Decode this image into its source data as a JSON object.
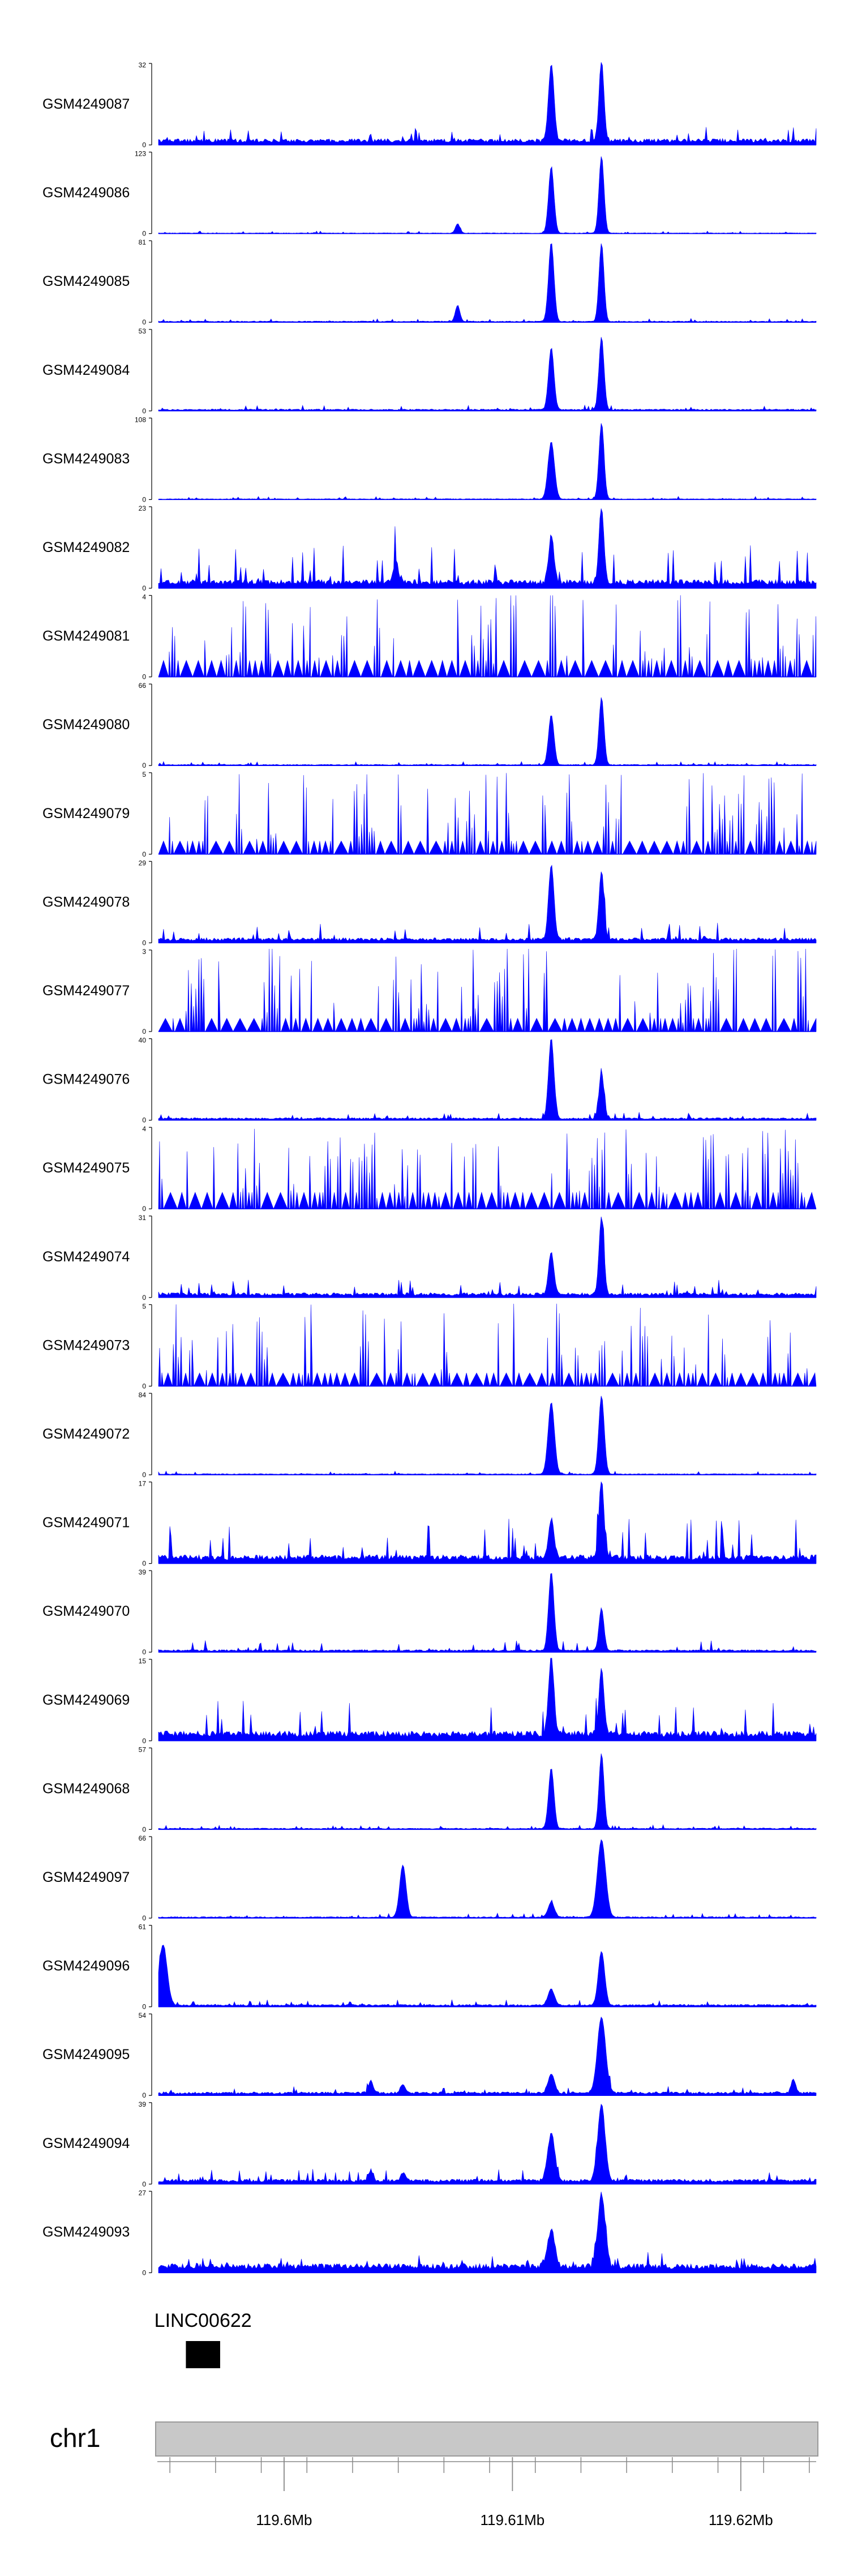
{
  "chart_data": {
    "type": "area",
    "title": "",
    "chromosome": "chr1",
    "gene": {
      "name": "LINC00622",
      "start": 119.5957,
      "end": 119.5972
    },
    "x_range": [
      119.5945,
      119.6233
    ],
    "ticks": [
      {
        "value": 119.6,
        "label": "119.6Mb"
      },
      {
        "value": 119.61,
        "label": "119.61Mb"
      },
      {
        "value": 119.62,
        "label": "119.62Mb"
      }
    ],
    "color": "#0000ff",
    "tracks": [
      {
        "name": "GSM4249087",
        "ymax": 32,
        "ymax_label": "32",
        "ymin_label": "0",
        "bg": 2.0,
        "noise": 2.5,
        "sparse": false,
        "peaks": [
          [
            119.6117,
            30,
            0.00012
          ],
          [
            119.6139,
            31,
            0.00011
          ]
        ]
      },
      {
        "name": "GSM4249086",
        "ymax": 123,
        "ymax_label": "123",
        "ymin_label": "0",
        "bg": 1.0,
        "noise": 1.5,
        "sparse": false,
        "peaks": [
          [
            119.6117,
            98,
            0.00012
          ],
          [
            119.6139,
            115,
            0.00011
          ],
          [
            119.6076,
            14,
            0.0001
          ]
        ]
      },
      {
        "name": "GSM4249085",
        "ymax": 81,
        "ymax_label": "81",
        "ymin_label": "0",
        "bg": 1.0,
        "noise": 1.5,
        "sparse": false,
        "peaks": [
          [
            119.6117,
            78,
            0.00012
          ],
          [
            119.6139,
            77,
            0.00011
          ],
          [
            119.6076,
            16,
            0.0001
          ]
        ]
      },
      {
        "name": "GSM4249084",
        "ymax": 53,
        "ymax_label": "53",
        "ymin_label": "0",
        "bg": 1.0,
        "noise": 1.5,
        "sparse": false,
        "peaks": [
          [
            119.6117,
            40,
            0.00012
          ],
          [
            119.6139,
            47,
            0.00011
          ]
        ]
      },
      {
        "name": "GSM4249083",
        "ymax": 108,
        "ymax_label": "108",
        "ymin_label": "0",
        "bg": 1.0,
        "noise": 1.5,
        "sparse": false,
        "peaks": [
          [
            119.6117,
            75,
            0.00014
          ],
          [
            119.6139,
            100,
            0.00011
          ]
        ]
      },
      {
        "name": "GSM4249082",
        "ymax": 23,
        "ymax_label": "23",
        "ymin_label": "0",
        "bg": 2.0,
        "noise": 5.0,
        "sparse": false,
        "peaks": [
          [
            119.6117,
            13,
            0.00012
          ],
          [
            119.6139,
            21,
            0.00011
          ],
          [
            119.6049,
            6,
            0.0001
          ]
        ]
      },
      {
        "name": "GSM4249081",
        "ymax": 4,
        "ymax_label": "4",
        "ymin_label": "0",
        "bg": 0.5,
        "noise": 3.5,
        "sparse": true,
        "peaks": []
      },
      {
        "name": "GSM4249080",
        "ymax": 66,
        "ymax_label": "66",
        "ymin_label": "0",
        "bg": 0.8,
        "noise": 1.2,
        "sparse": false,
        "peaks": [
          [
            119.6117,
            40,
            0.00012
          ],
          [
            119.6139,
            54,
            0.00011
          ]
        ]
      },
      {
        "name": "GSM4249079",
        "ymax": 5,
        "ymax_label": "5",
        "ymin_label": "0",
        "bg": 0.5,
        "noise": 4.5,
        "sparse": true,
        "peaks": []
      },
      {
        "name": "GSM4249078",
        "ymax": 29,
        "ymax_label": "29",
        "ymin_label": "0",
        "bg": 1.5,
        "noise": 3.0,
        "sparse": false,
        "peaks": [
          [
            119.6117,
            26,
            0.00012
          ],
          [
            119.6139,
            24,
            0.00011
          ]
        ]
      },
      {
        "name": "GSM4249077",
        "ymax": 3,
        "ymax_label": "3",
        "ymin_label": "0",
        "bg": 0.3,
        "noise": 2.9,
        "sparse": true,
        "peaks": []
      },
      {
        "name": "GSM4249076",
        "ymax": 40,
        "ymax_label": "40",
        "ymin_label": "0",
        "bg": 1.0,
        "noise": 1.5,
        "sparse": false,
        "peaks": [
          [
            119.6117,
            39,
            0.00012
          ],
          [
            119.6139,
            22,
            0.00011
          ]
        ]
      },
      {
        "name": "GSM4249075",
        "ymax": 4,
        "ymax_label": "4",
        "ymin_label": "0",
        "bg": 0.5,
        "noise": 3.5,
        "sparse": true,
        "peaks": []
      },
      {
        "name": "GSM4249074",
        "ymax": 31,
        "ymax_label": "31",
        "ymin_label": "0",
        "bg": 1.5,
        "noise": 3.0,
        "sparse": false,
        "peaks": [
          [
            119.6117,
            16,
            0.00012
          ],
          [
            119.6139,
            29,
            0.00011
          ]
        ]
      },
      {
        "name": "GSM4249073",
        "ymax": 5,
        "ymax_label": "5",
        "ymin_label": "0",
        "bg": 0.5,
        "noise": 4.5,
        "sparse": true,
        "peaks": []
      },
      {
        "name": "GSM4249072",
        "ymax": 84,
        "ymax_label": "84",
        "ymin_label": "0",
        "bg": 1.0,
        "noise": 1.5,
        "sparse": false,
        "peaks": [
          [
            119.6117,
            73,
            0.00014
          ],
          [
            119.6139,
            80,
            0.00012
          ]
        ]
      },
      {
        "name": "GSM4249071",
        "ymax": 17,
        "ymax_label": "17",
        "ymin_label": "0",
        "bg": 1.5,
        "noise": 4.0,
        "sparse": false,
        "peaks": [
          [
            119.6117,
            8,
            0.00012
          ],
          [
            119.6139,
            16,
            0.00011
          ]
        ]
      },
      {
        "name": "GSM4249070",
        "ymax": 39,
        "ymax_label": "39",
        "ymin_label": "0",
        "bg": 1.0,
        "noise": 2.5,
        "sparse": false,
        "peaks": [
          [
            119.6117,
            37,
            0.00012
          ],
          [
            119.6139,
            20,
            0.00011
          ]
        ]
      },
      {
        "name": "GSM4249069",
        "ymax": 15,
        "ymax_label": "15",
        "ymin_label": "0",
        "bg": 1.5,
        "noise": 3.0,
        "sparse": false,
        "peaks": [
          [
            119.6117,
            14,
            0.00012
          ],
          [
            119.6139,
            12,
            0.00011
          ]
        ]
      },
      {
        "name": "GSM4249068",
        "ymax": 57,
        "ymax_label": "57",
        "ymin_label": "0",
        "bg": 0.8,
        "noise": 1.2,
        "sparse": false,
        "peaks": [
          [
            119.6117,
            42,
            0.00012
          ],
          [
            119.6139,
            52,
            0.00011
          ]
        ]
      },
      {
        "name": "GSM4249097",
        "ymax": 66,
        "ymax_label": "66",
        "ymin_label": "0",
        "bg": 1.0,
        "noise": 1.5,
        "sparse": false,
        "peaks": [
          [
            119.6052,
            42,
            0.00014
          ],
          [
            119.6117,
            12,
            0.00014
          ],
          [
            119.6139,
            62,
            0.00018
          ]
        ]
      },
      {
        "name": "GSM4249096",
        "ymax": 61,
        "ymax_label": "61",
        "ymin_label": "0",
        "bg": 1.5,
        "noise": 2.0,
        "sparse": false,
        "peaks": [
          [
            119.5947,
            45,
            0.00018
          ],
          [
            119.6117,
            12,
            0.00014
          ],
          [
            119.6139,
            40,
            0.00014
          ]
        ]
      },
      {
        "name": "GSM4249095",
        "ymax": 54,
        "ymax_label": "54",
        "ymin_label": "0",
        "bg": 2.0,
        "noise": 2.5,
        "sparse": false,
        "peaks": [
          [
            119.6117,
            12,
            0.00014
          ],
          [
            119.6139,
            50,
            0.00018
          ],
          [
            119.6038,
            8,
            0.0001
          ],
          [
            119.6052,
            6,
            0.0001
          ],
          [
            119.6223,
            9,
            0.0001
          ]
        ]
      },
      {
        "name": "GSM4249094",
        "ymax": 39,
        "ymax_label": "39",
        "ymin_label": "0",
        "bg": 2.0,
        "noise": 2.5,
        "sparse": false,
        "peaks": [
          [
            119.6117,
            22,
            0.00016
          ],
          [
            119.6139,
            36,
            0.00016
          ],
          [
            119.6038,
            5,
            0.0001
          ],
          [
            119.6052,
            4,
            0.0001
          ]
        ]
      },
      {
        "name": "GSM4249093",
        "ymax": 27,
        "ymax_label": "27",
        "ymin_label": "0",
        "bg": 2.5,
        "noise": 2.0,
        "sparse": false,
        "peaks": [
          [
            119.6117,
            12,
            0.00016
          ],
          [
            119.6139,
            24,
            0.00016
          ]
        ]
      }
    ]
  }
}
